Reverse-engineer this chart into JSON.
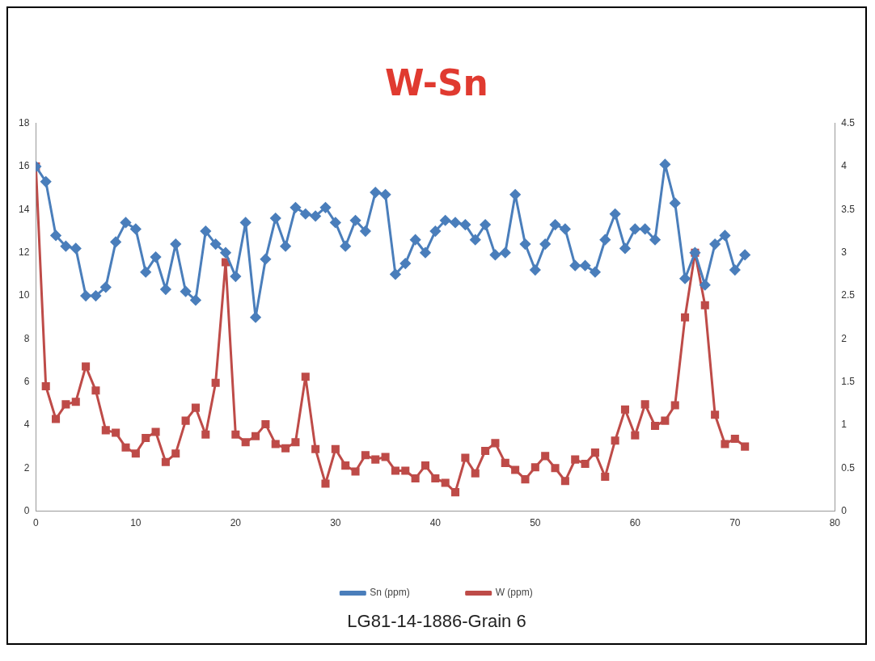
{
  "chart_data": {
    "type": "line",
    "title": "W-Sn",
    "x": [
      0,
      1,
      2,
      3,
      4,
      5,
      6,
      7,
      8,
      9,
      10,
      11,
      12,
      13,
      14,
      15,
      16,
      17,
      18,
      19,
      20,
      21,
      22,
      23,
      24,
      25,
      26,
      27,
      28,
      29,
      30,
      31,
      32,
      33,
      34,
      35,
      36,
      37,
      38,
      39,
      40,
      41,
      42,
      43,
      44,
      45,
      46,
      47,
      48,
      49,
      50,
      51,
      52,
      53,
      54,
      55,
      56,
      57,
      58,
      59,
      60,
      61,
      62,
      63,
      64,
      65,
      66,
      67,
      68,
      69,
      70,
      71
    ],
    "series": [
      {
        "name": "Sn (ppm)",
        "color": "#4a7ebb",
        "marker": "diamond",
        "values": [
          16,
          15.3,
          12.8,
          12.3,
          12.2,
          10.0,
          10.0,
          10.4,
          12.5,
          13.4,
          13.1,
          11.1,
          11.8,
          10.3,
          12.4,
          10.2,
          9.8,
          13.0,
          12.4,
          12.0,
          10.9,
          13.4,
          9.0,
          11.7,
          13.6,
          12.3,
          14.1,
          13.8,
          13.7,
          14.1,
          13.4,
          12.3,
          13.5,
          13.0,
          14.8,
          14.7,
          11.0,
          11.5,
          12.6,
          12.0,
          13.0,
          13.5,
          13.4,
          13.3,
          12.6,
          13.3,
          11.9,
          12.0,
          14.7,
          12.4,
          11.2,
          12.4,
          13.3,
          13.1,
          11.4,
          11.4,
          11.1,
          12.6,
          13.8,
          12.2,
          13.1,
          13.1,
          12.6,
          16.1,
          14.3,
          10.8,
          12.0,
          10.5,
          12.4,
          12.8,
          11.2,
          11.9
        ]
      },
      {
        "name": "W (ppm)",
        "color": "#be4b48",
        "marker": "square",
        "axis": "y2",
        "values": [
          4.0,
          1.45,
          1.07,
          1.24,
          1.27,
          1.68,
          1.4,
          0.94,
          0.91,
          0.74,
          0.67,
          0.85,
          0.92,
          0.57,
          0.67,
          1.05,
          1.2,
          0.89,
          1.49,
          2.89,
          0.89,
          0.8,
          0.87,
          1.01,
          0.78,
          0.73,
          0.8,
          1.56,
          0.72,
          0.32,
          0.72,
          0.53,
          0.46,
          0.65,
          0.6,
          0.63,
          0.47,
          0.47,
          0.38,
          0.53,
          0.38,
          0.33,
          0.22,
          0.62,
          0.44,
          0.7,
          0.79,
          0.56,
          0.48,
          0.37,
          0.51,
          0.64,
          0.5,
          0.35,
          0.6,
          0.55,
          0.68,
          0.4,
          0.82,
          1.18,
          0.88,
          1.24,
          0.99,
          1.05,
          1.23,
          2.25,
          3.0,
          2.39,
          1.12,
          0.78,
          0.84,
          0.75
        ]
      }
    ],
    "xlim": [
      0,
      80
    ],
    "xticks": [
      0,
      10,
      20,
      30,
      40,
      50,
      60,
      70,
      80
    ],
    "ylim": [
      0,
      18
    ],
    "yticks": [
      0,
      2,
      4,
      6,
      8,
      10,
      12,
      14,
      16,
      18
    ],
    "y2lim": [
      0,
      4.5
    ],
    "y2ticks": [
      0,
      0.5,
      1,
      1.5,
      2,
      2.5,
      3,
      3.5,
      4,
      4.5
    ],
    "grid": false,
    "legend": "bottom",
    "line_style": "solid",
    "annotations": [
      "LG81-14-1886-Grain 6"
    ]
  }
}
